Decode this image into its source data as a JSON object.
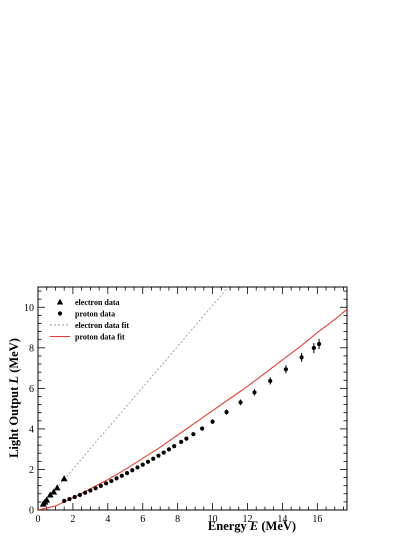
{
  "chart_data": {
    "type": "scatter",
    "xlabel": "Energy E (MeV)",
    "ylabel": "Light Output L (MeV)",
    "xlabel_parts": [
      "Energy ",
      "E",
      " (MeV)"
    ],
    "ylabel_parts": [
      "Light Output ",
      "L",
      " (MeV)"
    ],
    "xlim": [
      0,
      17.7
    ],
    "ylim": [
      0,
      11.0
    ],
    "xticks": [
      0,
      2,
      4,
      6,
      8,
      10,
      12,
      14,
      16
    ],
    "yticks": [
      0,
      2,
      4,
      6,
      8,
      10
    ],
    "grid": false,
    "legend_position": "top-left",
    "legend": [
      {
        "label": "electron data",
        "marker": "triangle"
      },
      {
        "label": "proton data",
        "marker": "circle"
      },
      {
        "label": "electron data fit",
        "line": "dashed-gray"
      },
      {
        "label": "proton data fit",
        "line": "solid-red"
      }
    ],
    "series": [
      {
        "name": "electron data",
        "marker": "triangle",
        "color": "#000000",
        "x": [
          0.3,
          0.4,
          0.5,
          0.7,
          0.9,
          1.1,
          1.5
        ],
        "y": [
          0.3,
          0.4,
          0.5,
          0.75,
          0.9,
          1.1,
          1.55
        ]
      },
      {
        "name": "proton data",
        "marker": "circle",
        "color": "#000000",
        "x": [
          1.5,
          1.8,
          2.1,
          2.4,
          2.7,
          3.0,
          3.3,
          3.6,
          3.9,
          4.2,
          4.5,
          4.8,
          5.1,
          5.4,
          5.7,
          6.0,
          6.3,
          6.6,
          6.9,
          7.2,
          7.5,
          7.8,
          8.2,
          8.5,
          8.9,
          9.4,
          10.0,
          10.8,
          11.6,
          12.4,
          13.3,
          14.2,
          15.1,
          15.8,
          16.1
        ],
        "y": [
          0.45,
          0.54,
          0.64,
          0.74,
          0.85,
          0.96,
          1.07,
          1.19,
          1.31,
          1.43,
          1.56,
          1.69,
          1.82,
          1.96,
          2.1,
          2.24,
          2.38,
          2.53,
          2.68,
          2.83,
          2.99,
          3.15,
          3.36,
          3.52,
          3.74,
          4.02,
          4.36,
          4.83,
          5.31,
          5.8,
          6.37,
          6.94,
          7.53,
          7.99,
          8.19
        ],
        "yerr": [
          0.03,
          0.03,
          0.03,
          0.03,
          0.03,
          0.03,
          0.04,
          0.04,
          0.04,
          0.04,
          0.04,
          0.05,
          0.05,
          0.05,
          0.05,
          0.05,
          0.06,
          0.06,
          0.06,
          0.07,
          0.07,
          0.07,
          0.08,
          0.08,
          0.09,
          0.1,
          0.11,
          0.13,
          0.14,
          0.16,
          0.18,
          0.2,
          0.22,
          0.25,
          0.25
        ]
      },
      {
        "name": "electron data fit",
        "line": "dashed",
        "color": "#9a9a9a",
        "x": [
          0,
          10.9
        ],
        "y": [
          0,
          11.0
        ]
      },
      {
        "name": "proton data fit",
        "line": "solid",
        "color": "#e8402a",
        "x": [
          0,
          1,
          2,
          3,
          4,
          5,
          6,
          7,
          8,
          9,
          10,
          11,
          12,
          13,
          14,
          15,
          16,
          17,
          17.7
        ],
        "y": [
          0,
          0.2,
          0.6,
          1.05,
          1.5,
          2.0,
          2.55,
          3.1,
          3.7,
          4.3,
          4.9,
          5.5,
          6.1,
          6.75,
          7.4,
          8.05,
          8.75,
          9.4,
          9.9
        ]
      }
    ]
  }
}
